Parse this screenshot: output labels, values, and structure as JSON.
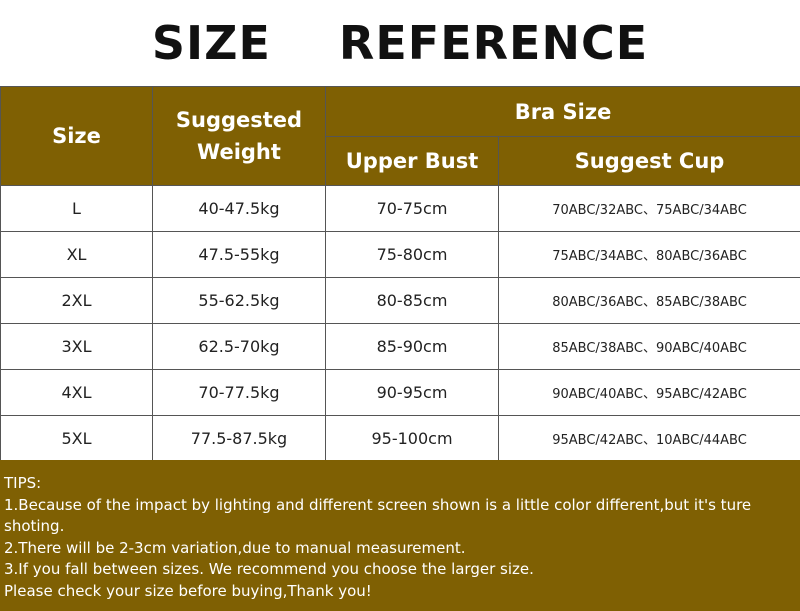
{
  "title": "SIZE    REFERENCE",
  "headers": {
    "size": "Size",
    "weight": "Suggested Weight",
    "bra": "Bra Size",
    "upper_bust": "Upper Bust",
    "cup": "Suggest Cup"
  },
  "rows": [
    {
      "size": "L",
      "weight": "40-47.5kg",
      "bust": "70-75cm",
      "cup": "70ABC/32ABC、75ABC/34ABC"
    },
    {
      "size": "XL",
      "weight": "47.5-55kg",
      "bust": "75-80cm",
      "cup": "75ABC/34ABC、80ABC/36ABC"
    },
    {
      "size": "2XL",
      "weight": "55-62.5kg",
      "bust": "80-85cm",
      "cup": "80ABC/36ABC、85ABC/38ABC"
    },
    {
      "size": "3XL",
      "weight": "62.5-70kg",
      "bust": "85-90cm",
      "cup": "85ABC/38ABC、90ABC/40ABC"
    },
    {
      "size": "4XL",
      "weight": "70-77.5kg",
      "bust": "90-95cm",
      "cup": "90ABC/40ABC、95ABC/42ABC"
    },
    {
      "size": "5XL",
      "weight": "77.5-87.5kg",
      "bust": "95-100cm",
      "cup": "95ABC/42ABC、10ABC/44ABC"
    }
  ],
  "tips": [
    "TIPS:",
    "1.Because of the impact by lighting and different screen shown is a little color different,but it's ture shoting.",
    "2.There will be 2-3cm variation,due to manual measurement.",
    "3.If you fall between sizes. We recommend you choose the larger size.",
    "Please check your size before buying,Thank you!"
  ],
  "colors": {
    "header": "#7f6003",
    "text": "#ffffff"
  }
}
